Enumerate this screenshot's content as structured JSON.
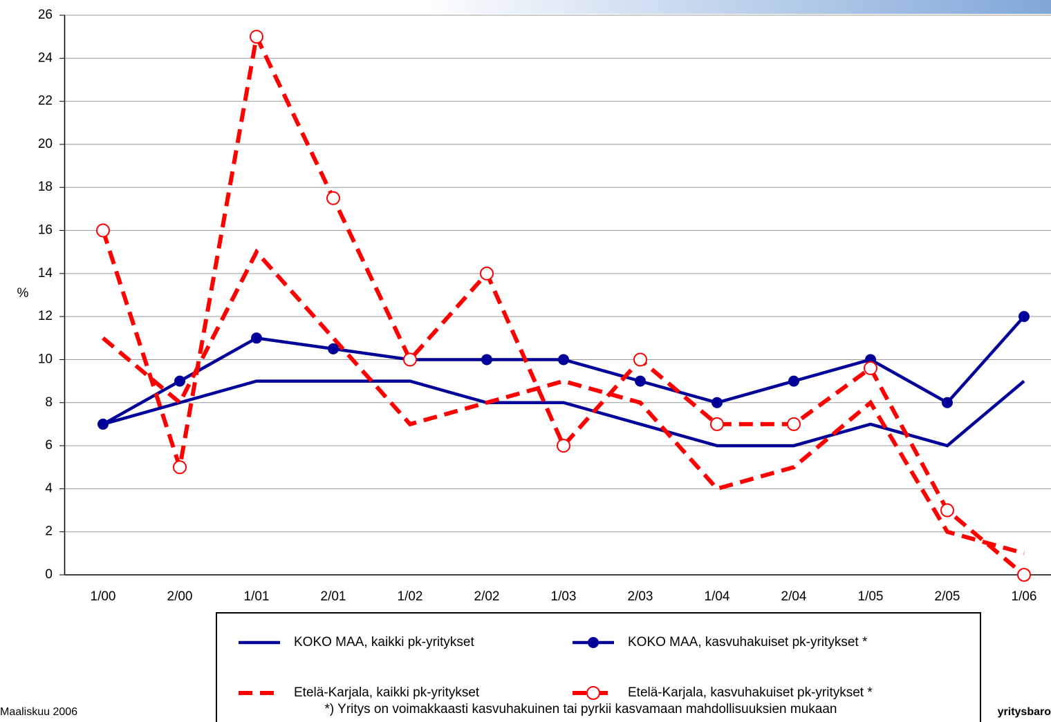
{
  "chart_data": {
    "type": "line",
    "y_label": "%",
    "categories": [
      "1/00",
      "2/00",
      "1/01",
      "2/01",
      "1/02",
      "2/02",
      "1/03",
      "2/03",
      "1/04",
      "2/04",
      "1/05",
      "2/05",
      "1/06"
    ],
    "ylim": [
      0,
      26
    ],
    "yticks": [
      0,
      2,
      4,
      6,
      8,
      10,
      12,
      14,
      16,
      18,
      20,
      22,
      24,
      26
    ],
    "grid": true,
    "series": [
      {
        "name": "KOKO MAA, kaikki pk-yritykset",
        "color": "#000099",
        "dashed": false,
        "markers": false,
        "values": [
          7,
          8,
          9,
          9,
          9,
          8,
          8,
          7,
          6,
          6,
          7,
          6,
          9
        ]
      },
      {
        "name": "KOKO MAA, kasvuhakuiset pk-yritykset *",
        "color": "#000099",
        "dashed": false,
        "markers": true,
        "values": [
          7,
          9,
          11,
          10.5,
          10,
          10,
          10,
          9,
          8,
          9,
          10,
          8,
          12
        ]
      },
      {
        "name": "Etelä-Karjala, kaikki pk-yritykset",
        "color": "#ff0000",
        "dashed": true,
        "markers": false,
        "values": [
          11,
          8,
          15,
          11,
          7,
          8,
          9,
          8,
          4,
          5,
          8,
          2,
          1
        ]
      },
      {
        "name": "Etelä-Karjala, kasvuhakuiset pk-yritykset *",
        "color": "#ff0000",
        "dashed": true,
        "markers": true,
        "values": [
          16,
          5,
          25,
          17.5,
          10,
          14,
          6,
          10,
          7,
          7,
          9.6,
          3,
          0
        ]
      }
    ],
    "footnote": "*) Yritys on voimakkaasti kasvuhakuinen tai pyrkii kasvamaan mahdollisuuksien mukaan",
    "date_note": "Maaliskuu 2006",
    "source": "yritysbaro"
  }
}
